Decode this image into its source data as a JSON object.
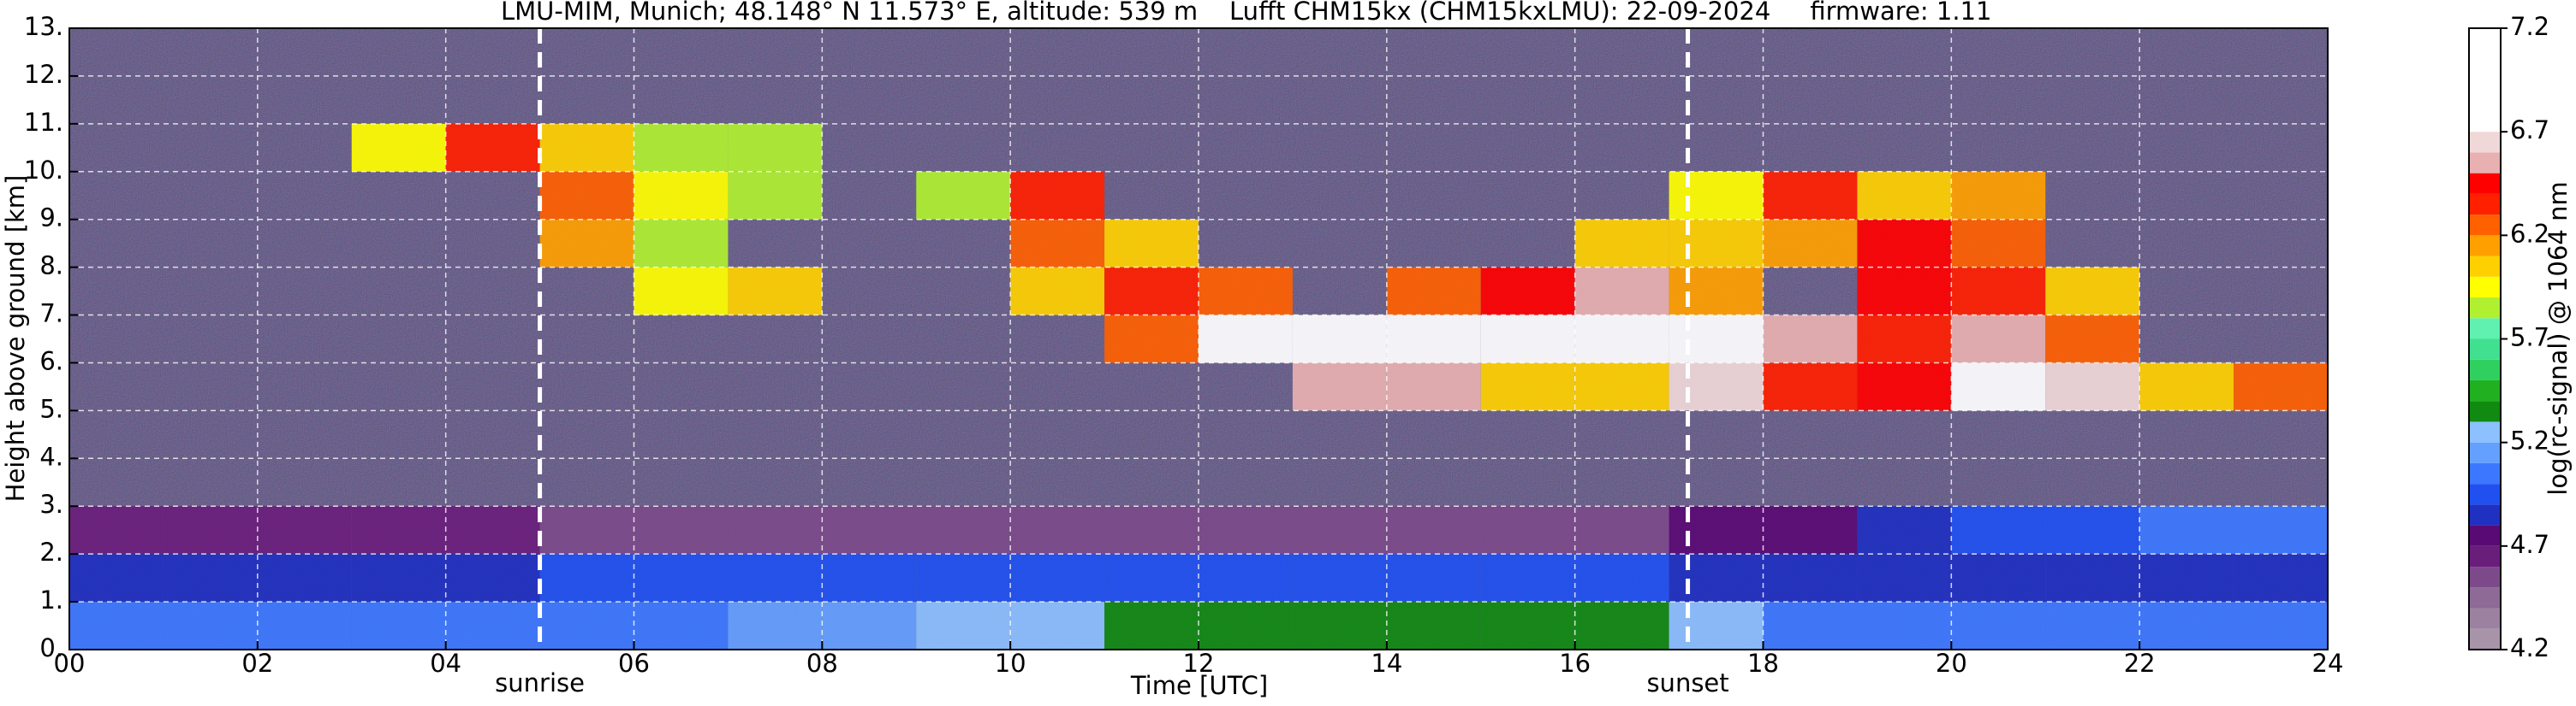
{
  "chart_data": {
    "type": "heatmap",
    "title": "LMU-MIM, Munich; 48.148° N 11.573° E, altitude: 539 m    Lufft CHM15kx (CHM15kxLMU): 22-09-2024     firmware: 1.11",
    "x_label": "Time [UTC]",
    "y_label": "Height above ground [km]",
    "xlim": [
      0,
      24
    ],
    "ylim": [
      0,
      13
    ],
    "xticks": [
      {
        "value": 0,
        "label": "00"
      },
      {
        "value": 2,
        "label": "02"
      },
      {
        "value": 4,
        "label": "04"
      },
      {
        "value": 6,
        "label": "06"
      },
      {
        "value": 8,
        "label": "08"
      },
      {
        "value": 10,
        "label": "10"
      },
      {
        "value": 12,
        "label": "12"
      },
      {
        "value": 14,
        "label": "14"
      },
      {
        "value": 16,
        "label": "16"
      },
      {
        "value": 18,
        "label": "18"
      },
      {
        "value": 20,
        "label": "20"
      },
      {
        "value": 22,
        "label": "22"
      },
      {
        "value": 24,
        "label": "24"
      }
    ],
    "yticks": [
      {
        "value": 0,
        "label": "0."
      },
      {
        "value": 1,
        "label": "1."
      },
      {
        "value": 2,
        "label": "2."
      },
      {
        "value": 3,
        "label": "3."
      },
      {
        "value": 4,
        "label": "4."
      },
      {
        "value": 5,
        "label": "5."
      },
      {
        "value": 6,
        "label": "6."
      },
      {
        "value": 7,
        "label": "7."
      },
      {
        "value": 8,
        "label": "8."
      },
      {
        "value": 9,
        "label": "9."
      },
      {
        "value": 10,
        "label": "10."
      },
      {
        "value": 11,
        "label": "11."
      },
      {
        "value": 12,
        "label": "12."
      },
      {
        "value": 13,
        "label": "13."
      }
    ],
    "grid": true,
    "x": [
      0,
      1,
      2,
      3,
      4,
      5,
      6,
      7,
      8,
      9,
      10,
      11,
      12,
      13,
      14,
      15,
      16,
      17,
      18,
      19,
      20,
      21,
      22,
      23
    ],
    "y": [
      0,
      1,
      2,
      3,
      4,
      5,
      6,
      7,
      8,
      9,
      10,
      11,
      12
    ],
    "z": [
      [
        5.05,
        5.05,
        5.05,
        5.05,
        5.05,
        5.05,
        5.05,
        5.1,
        5.15,
        5.2,
        5.25,
        5.3,
        5.3,
        5.3,
        5.3,
        5.3,
        5.3,
        5.25,
        5.0,
        5.0,
        5.0,
        5.0,
        5.0,
        5.0
      ],
      [
        4.85,
        4.85,
        4.85,
        4.85,
        4.85,
        4.9,
        4.9,
        4.9,
        4.9,
        4.9,
        4.9,
        4.9,
        4.9,
        4.9,
        4.9,
        4.9,
        4.9,
        4.85,
        4.8,
        4.8,
        4.8,
        4.8,
        4.8,
        4.8
      ],
      [
        4.6,
        4.6,
        4.6,
        4.6,
        4.6,
        4.55,
        4.5,
        4.5,
        4.5,
        4.5,
        4.5,
        4.5,
        4.5,
        4.5,
        4.5,
        4.5,
        4.5,
        4.7,
        4.75,
        4.85,
        4.9,
        4.9,
        5.0,
        5.0
      ],
      [
        null,
        null,
        null,
        null,
        null,
        null,
        null,
        null,
        null,
        null,
        null,
        null,
        null,
        null,
        null,
        null,
        null,
        null,
        null,
        null,
        null,
        null,
        null,
        null
      ],
      [
        null,
        null,
        null,
        null,
        null,
        null,
        null,
        null,
        null,
        null,
        null,
        null,
        null,
        null,
        null,
        null,
        null,
        null,
        null,
        null,
        null,
        null,
        null,
        null
      ],
      [
        null,
        null,
        null,
        null,
        null,
        null,
        null,
        null,
        null,
        null,
        null,
        null,
        null,
        6.5,
        6.5,
        6.0,
        6.0,
        6.6,
        6.3,
        6.4,
        6.9,
        6.6,
        6.0,
        6.2
      ],
      [
        null,
        null,
        null,
        null,
        null,
        null,
        null,
        null,
        null,
        null,
        null,
        6.2,
        6.8,
        6.9,
        6.9,
        6.9,
        6.9,
        6.9,
        6.5,
        6.3,
        6.5,
        6.2,
        null,
        null
      ],
      [
        null,
        null,
        null,
        null,
        null,
        null,
        5.9,
        6.0,
        null,
        null,
        6.0,
        6.3,
        6.2,
        null,
        6.2,
        6.4,
        6.5,
        6.1,
        null,
        6.4,
        6.3,
        6.0,
        null,
        null
      ],
      [
        null,
        null,
        null,
        null,
        null,
        6.1,
        5.8,
        null,
        null,
        null,
        6.2,
        6.0,
        null,
        null,
        null,
        null,
        6.0,
        6.0,
        6.1,
        6.4,
        6.2,
        null,
        null,
        null
      ],
      [
        null,
        null,
        null,
        null,
        null,
        6.2,
        5.9,
        5.8,
        null,
        5.8,
        6.3,
        null,
        null,
        null,
        null,
        null,
        null,
        5.9,
        6.3,
        6.0,
        6.1,
        null,
        null,
        null
      ],
      [
        null,
        null,
        null,
        5.9,
        6.3,
        6.0,
        5.8,
        5.8,
        null,
        null,
        null,
        null,
        null,
        null,
        null,
        null,
        null,
        null,
        null,
        null,
        null,
        null,
        null,
        null
      ],
      [
        null,
        null,
        null,
        null,
        null,
        null,
        null,
        null,
        null,
        null,
        null,
        null,
        null,
        null,
        null,
        null,
        null,
        null,
        null,
        null,
        null,
        null,
        null,
        null
      ],
      [
        null,
        null,
        null,
        null,
        null,
        null,
        null,
        null,
        null,
        null,
        null,
        null,
        null,
        null,
        null,
        null,
        null,
        null,
        null,
        null,
        null,
        null,
        null,
        null
      ]
    ],
    "markers": [
      {
        "label": "sunrise",
        "x": 5.0
      },
      {
        "label": "sunset",
        "x": 17.2
      }
    ],
    "colorbar": {
      "label": "log(rc-signal) @ 1064 nm",
      "lim": [
        4.2,
        7.2
      ],
      "ticks": [
        4.2,
        4.7,
        5.2,
        5.7,
        6.2,
        6.7,
        7.2
      ],
      "levels": [
        4.2,
        4.3,
        4.4,
        4.5,
        4.6,
        4.7,
        4.8,
        4.9,
        5.0,
        5.1,
        5.2,
        5.3,
        5.4,
        5.5,
        5.6,
        5.7,
        5.8,
        5.9,
        6.0,
        6.1,
        6.2,
        6.3,
        6.4,
        6.5,
        6.6,
        6.7,
        7.2
      ],
      "colors": [
        "#a894a8",
        "#9c82a0",
        "#8e6a96",
        "#7c4a8a",
        "#6a1e7c",
        "#5a0a74",
        "#2030c0",
        "#2050f0",
        "#3c78ff",
        "#64a0ff",
        "#8cc0ff",
        "#108a10",
        "#20b020",
        "#30d060",
        "#40e090",
        "#60f0b0",
        "#b0f030",
        "#ffff00",
        "#ffd000",
        "#ffa000",
        "#ff6000",
        "#ff2000",
        "#ff0000",
        "#e8b0b0",
        "#f0d8d8",
        "#ffffff"
      ]
    }
  }
}
